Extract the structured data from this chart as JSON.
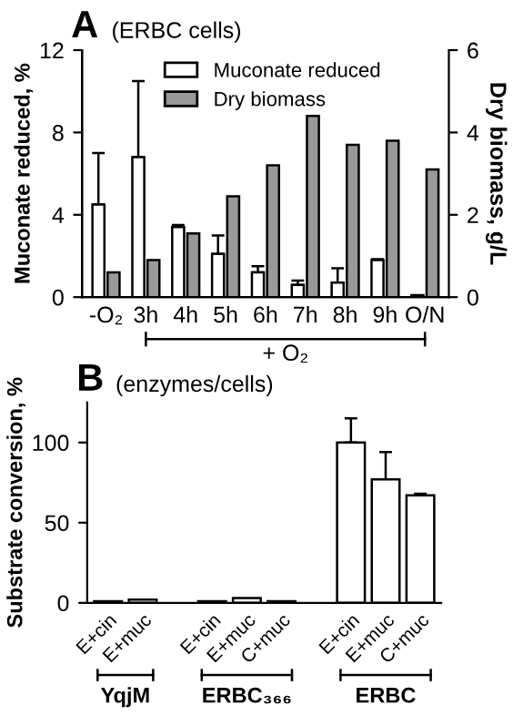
{
  "chart_data": [
    {
      "type": "bar",
      "title": "A",
      "subtitle": "(ERBC cells)",
      "ylabel": "Muconate reduced, %",
      "y2label": "Dry biomass, g/L",
      "categories": [
        "-O₂",
        "3h",
        "4h",
        "5h",
        "6h",
        "7h",
        "8h",
        "9h",
        "O/N"
      ],
      "series": [
        {
          "name": "Muconate reduced",
          "color": "#ffffff",
          "values": [
            4.5,
            6.8,
            3.4,
            2.1,
            1.2,
            0.6,
            0.7,
            1.8,
            0.1
          ],
          "errors": [
            2.5,
            3.7,
            0.1,
            0.9,
            0.3,
            0.2,
            0.7,
            0.05,
            null
          ]
        },
        {
          "name": "Dry biomass",
          "color": "#999999",
          "axis": "y2",
          "values": [
            0.6,
            0.9,
            1.55,
            2.45,
            3.2,
            4.4,
            3.7,
            3.8,
            3.1
          ]
        }
      ],
      "ylim": [
        0,
        12
      ],
      "yticks": [
        0,
        4,
        8,
        12
      ],
      "y2lim": [
        0,
        6
      ],
      "y2ticks": [
        0,
        2,
        4,
        6
      ],
      "annotations": [
        "+ O₂"
      ],
      "legend": "top",
      "grid": false
    },
    {
      "type": "bar",
      "title": "B",
      "subtitle": "(enzymes/cells)",
      "ylabel": "Substrate conversion, %",
      "categories": [
        "E+cin",
        "E+muc",
        null,
        "E+cin",
        "E+muc",
        "C+muc",
        null,
        "E+cin",
        "E+muc",
        "C+muc"
      ],
      "values": [
        1,
        2,
        null,
        1,
        3,
        1,
        null,
        100,
        77,
        67
      ],
      "errors": [
        null,
        null,
        null,
        null,
        null,
        null,
        null,
        15,
        17,
        1
      ],
      "color": "#ffffff",
      "ylim": [
        0,
        125
      ],
      "yticks": [
        0,
        50,
        100
      ],
      "annotations": [
        "YqjM",
        "ERBC₃₆₆",
        "ERBC"
      ],
      "legend": false,
      "grid": false
    }
  ]
}
